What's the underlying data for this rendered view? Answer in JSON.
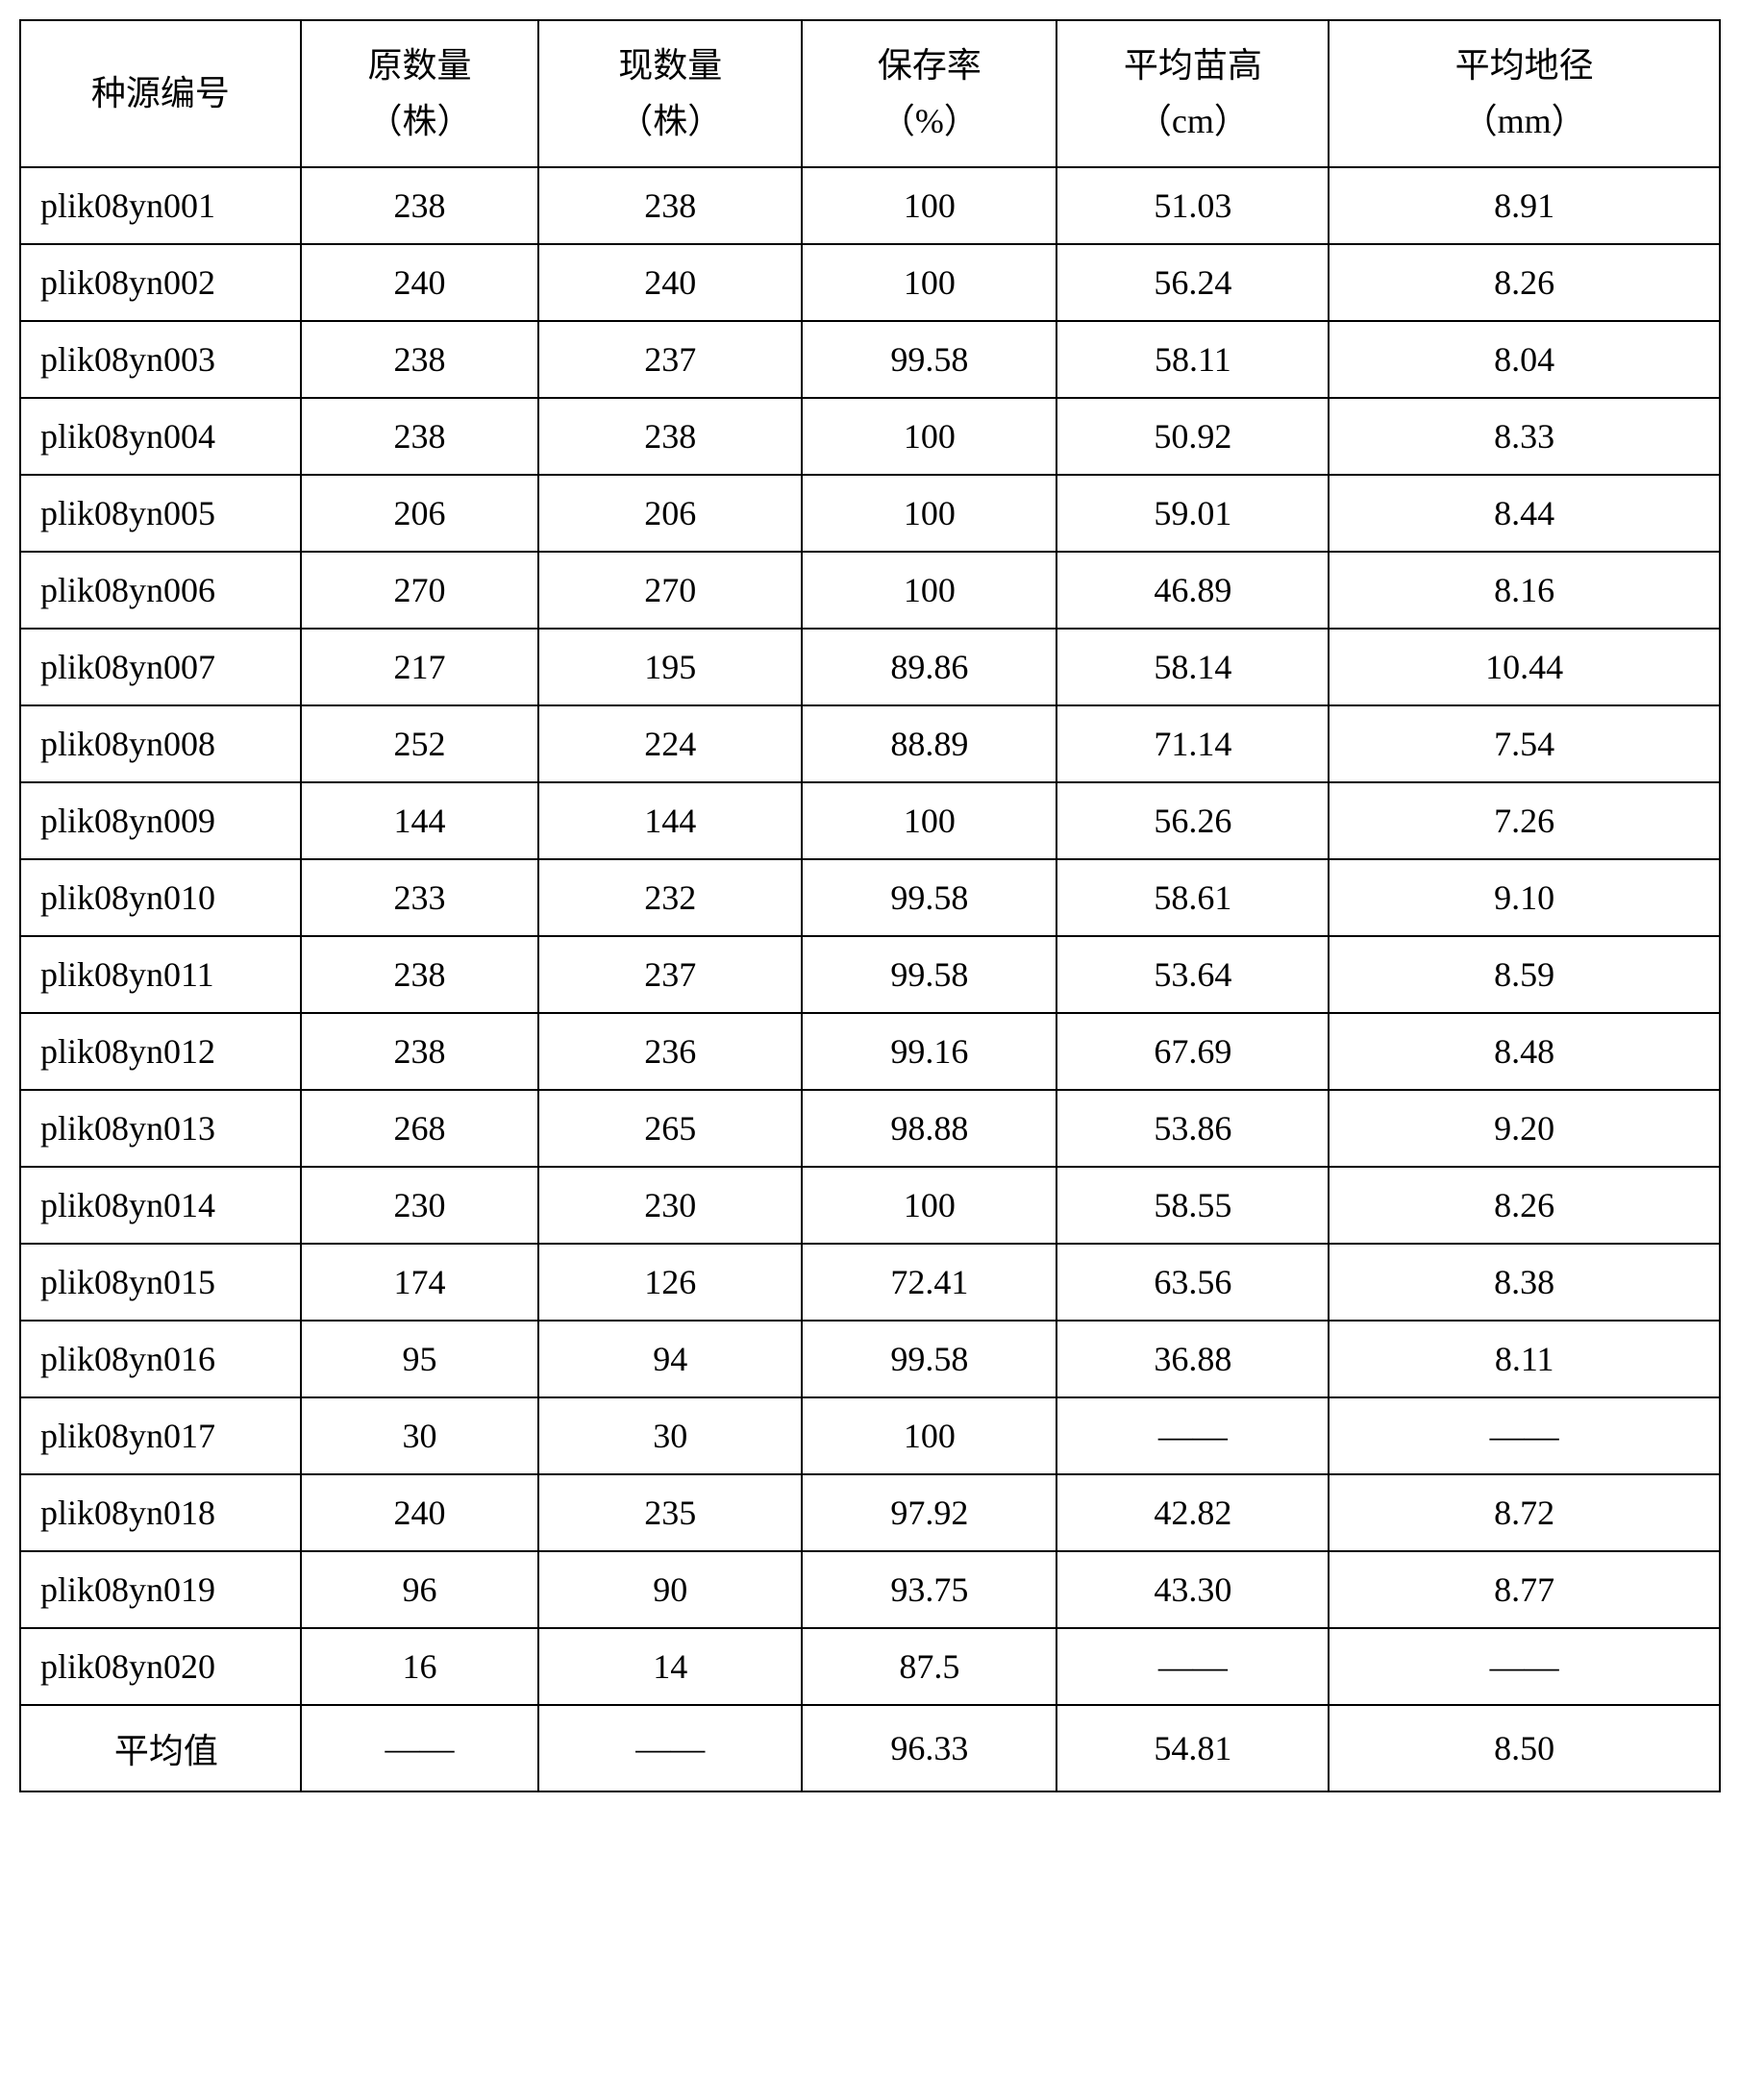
{
  "table": {
    "columns": [
      {
        "line1": "种源编号",
        "line2": ""
      },
      {
        "line1": "原数量",
        "line2": "（株）"
      },
      {
        "line1": "现数量",
        "line2": "（株）"
      },
      {
        "line1": "保存率",
        "line2": "（%）"
      },
      {
        "line1": "平均苗高",
        "line2": "（cm）"
      },
      {
        "line1": "平均地径",
        "line2": "（mm）"
      }
    ],
    "rows": [
      [
        "plik08yn001",
        "238",
        "238",
        "100",
        "51.03",
        "8.91"
      ],
      [
        "plik08yn002",
        "240",
        "240",
        "100",
        "56.24",
        "8.26"
      ],
      [
        "plik08yn003",
        "238",
        "237",
        "99.58",
        "58.11",
        "8.04"
      ],
      [
        "plik08yn004",
        "238",
        "238",
        "100",
        "50.92",
        "8.33"
      ],
      [
        "plik08yn005",
        "206",
        "206",
        "100",
        "59.01",
        "8.44"
      ],
      [
        "plik08yn006",
        "270",
        "270",
        "100",
        "46.89",
        "8.16"
      ],
      [
        "plik08yn007",
        "217",
        "195",
        "89.86",
        "58.14",
        "10.44"
      ],
      [
        "plik08yn008",
        "252",
        "224",
        "88.89",
        "71.14",
        "7.54"
      ],
      [
        "plik08yn009",
        "144",
        "144",
        "100",
        "56.26",
        "7.26"
      ],
      [
        "plik08yn010",
        "233",
        "232",
        "99.58",
        "58.61",
        "9.10"
      ],
      [
        "plik08yn011",
        "238",
        "237",
        "99.58",
        "53.64",
        "8.59"
      ],
      [
        "plik08yn012",
        "238",
        "236",
        "99.16",
        "67.69",
        "8.48"
      ],
      [
        "plik08yn013",
        "268",
        "265",
        "98.88",
        "53.86",
        "9.20"
      ],
      [
        "plik08yn014",
        "230",
        "230",
        "100",
        "58.55",
        "8.26"
      ],
      [
        "plik08yn015",
        "174",
        "126",
        "72.41",
        "63.56",
        "8.38"
      ],
      [
        "plik08yn016",
        "95",
        "94",
        "99.58",
        "36.88",
        "8.11"
      ],
      [
        "plik08yn017",
        "30",
        "30",
        "100",
        "——",
        "——"
      ],
      [
        "plik08yn018",
        "240",
        "235",
        "97.92",
        "42.82",
        "8.72"
      ],
      [
        "plik08yn019",
        "96",
        "90",
        "93.75",
        "43.30",
        "8.77"
      ],
      [
        "plik08yn020",
        "16",
        "14",
        "87.5",
        "——",
        "——"
      ]
    ],
    "summary": [
      "平均值",
      "——",
      "——",
      "96.33",
      "54.81",
      "8.50"
    ],
    "dash_symbol": "——",
    "column_classes": [
      "col-id",
      "col-orig",
      "col-curr",
      "col-rate",
      "col-height",
      "col-diam"
    ],
    "border_color": "#000000",
    "background_color": "#ffffff",
    "text_color": "#000000",
    "font_size": 36,
    "cell_padding": 18
  }
}
